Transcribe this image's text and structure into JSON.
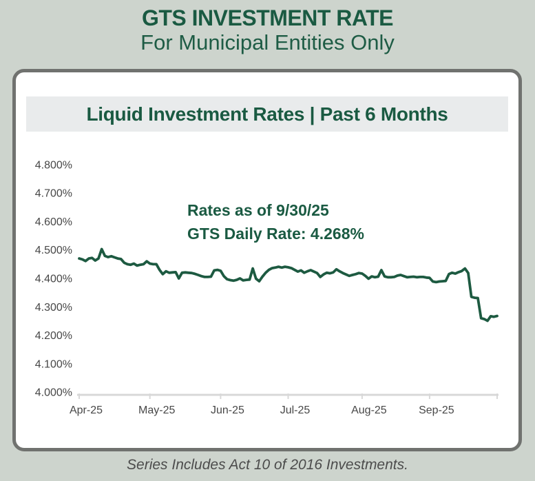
{
  "page": {
    "title_line1": "GTS INVESTMENT RATE",
    "title_line2": "For Municipal Entities Only",
    "footer_note": "Series Includes Act 10 of 2016 Investments.",
    "background_color": "#cdd4cd",
    "accent_green": "#1a5a42"
  },
  "card": {
    "banner_title": "Liquid Investment Rates | Past 6 Months",
    "banner_bg": "#e9ebec",
    "border_color": "#70726f"
  },
  "chart_data": {
    "type": "line",
    "title": "Liquid Investment Rates | Past 6 Months",
    "annotation": {
      "line1": "Rates as of 9/30/25",
      "line2": "GTS Daily Rate: 4.268%"
    },
    "x_tick_labels": [
      "Apr-25",
      "May-25",
      "Jun-25",
      "Jul-25",
      "Aug-25",
      "Sep-25"
    ],
    "y_tick_labels": [
      "4.000%",
      "4.100%",
      "4.200%",
      "4.300%",
      "4.400%",
      "4.500%",
      "4.600%",
      "4.700%",
      "4.800%"
    ],
    "ylim": [
      4.0,
      4.8
    ],
    "grid": false,
    "legend": false,
    "month_start_indices": [
      0,
      22,
      44,
      65,
      88,
      109
    ],
    "line_color": "#1d5a41",
    "axis_color": "#d8d8d8",
    "label_color": "#474747",
    "series": [
      {
        "name": "GTS Daily Rate",
        "final_value": 4.268,
        "values": [
          4.47,
          4.467,
          4.461,
          4.47,
          4.472,
          4.463,
          4.47,
          4.503,
          4.479,
          4.475,
          4.478,
          4.474,
          4.47,
          4.468,
          4.455,
          4.45,
          4.448,
          4.452,
          4.445,
          4.448,
          4.45,
          4.46,
          4.452,
          4.45,
          4.45,
          4.43,
          4.415,
          4.425,
          4.42,
          4.421,
          4.422,
          4.4,
          4.42,
          4.421,
          4.42,
          4.419,
          4.416,
          4.412,
          4.408,
          4.405,
          4.405,
          4.406,
          4.428,
          4.43,
          4.427,
          4.408,
          4.397,
          4.394,
          4.392,
          4.395,
          4.4,
          4.393,
          4.395,
          4.396,
          4.435,
          4.399,
          4.39,
          4.406,
          4.42,
          4.43,
          4.436,
          4.438,
          4.441,
          4.438,
          4.441,
          4.439,
          4.436,
          4.43,
          4.424,
          4.428,
          4.42,
          4.425,
          4.429,
          4.424,
          4.419,
          4.405,
          4.414,
          4.42,
          4.418,
          4.421,
          4.432,
          4.425,
          4.419,
          4.414,
          4.409,
          4.412,
          4.415,
          4.419,
          4.417,
          4.409,
          4.399,
          4.407,
          4.404,
          4.406,
          4.429,
          4.407,
          4.404,
          4.404,
          4.405,
          4.41,
          4.412,
          4.408,
          4.404,
          4.405,
          4.406,
          4.404,
          4.405,
          4.405,
          4.403,
          4.402,
          4.389,
          4.387,
          4.389,
          4.39,
          4.391,
          4.415,
          4.42,
          4.417,
          4.422,
          4.426,
          4.435,
          4.419,
          4.335,
          4.332,
          4.331,
          4.26,
          4.257,
          4.251,
          4.267,
          4.265,
          4.268
        ]
      }
    ]
  }
}
